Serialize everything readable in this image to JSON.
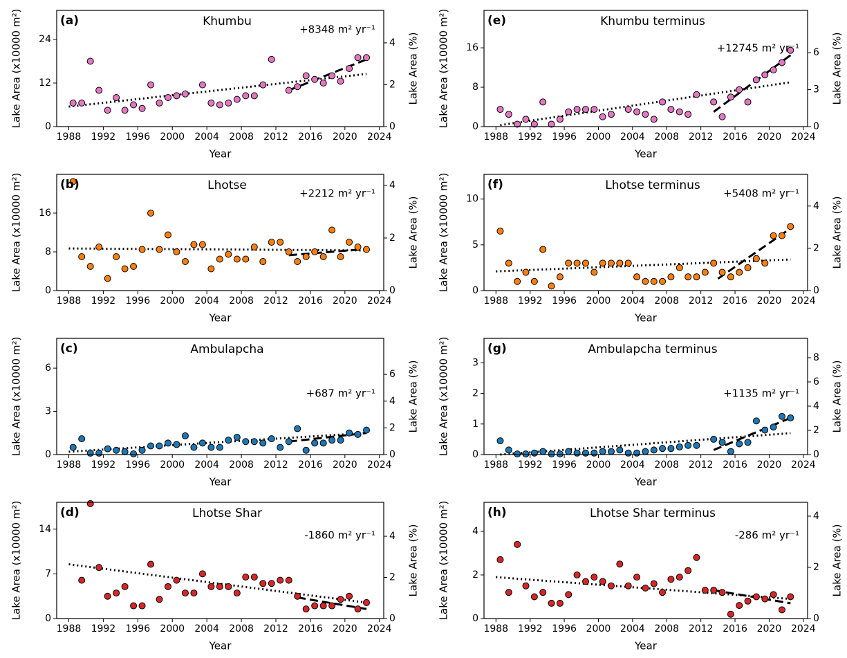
{
  "chart_data": [
    {
      "type": "scatter",
      "label": "(a)",
      "title": "Khumbu",
      "annotation": "+8348 m² yr⁻¹",
      "xlabel": "Year",
      "ylabel": "Lake Area (x10000 m²)",
      "y2label": "Lake Area (%)",
      "color": "#e377c2",
      "x": [
        1988.5,
        1989.5,
        1990.5,
        1991.5,
        1992.5,
        1993.5,
        1994.5,
        1995.5,
        1996.5,
        1997.5,
        1998.5,
        1999.5,
        2000.5,
        2001.5,
        2003.5,
        2004.5,
        2005.5,
        2006.5,
        2007.5,
        2008.5,
        2009.5,
        2010.5,
        2011.5,
        2013.5,
        2014.5,
        2015.5,
        2016.5,
        2017.5,
        2018.5,
        2019.5,
        2020.5,
        2021.5,
        2022.5
      ],
      "values": [
        6.5,
        6.5,
        18,
        10,
        4.5,
        8,
        4.5,
        6,
        5,
        11.5,
        6.5,
        8,
        8.5,
        9,
        11.5,
        6.5,
        6,
        6.5,
        7.5,
        8.5,
        8.5,
        11.5,
        18.5,
        10,
        11,
        14,
        13,
        12,
        14,
        12.5,
        16,
        19,
        19
      ],
      "trend": {
        "style": "dotted",
        "x": [
          1988,
          2022.5
        ],
        "values": [
          5.5,
          14.5
        ]
      },
      "recent_trend": {
        "style": "dashed",
        "x": [
          2013.5,
          2022.5
        ],
        "values": [
          10,
          18.5
        ]
      },
      "xlim": [
        1986.6,
        2024.5
      ],
      "xticks": [
        1988,
        1992,
        1996,
        2000,
        2004,
        2008,
        2012,
        2016,
        2020,
        2024
      ],
      "ylim": [
        0,
        32
      ],
      "yticks": [
        0,
        12,
        24
      ],
      "y2lim": [
        0,
        5.55
      ],
      "y2ticks": [
        0,
        2,
        4
      ]
    },
    {
      "type": "scatter",
      "label": "(b)",
      "title": "Lhotse",
      "annotation": "+2212 m² yr⁻¹",
      "xlabel": "Year",
      "ylabel": "Lake Area (x10000 m²)",
      "y2label": "Lake Area (%)",
      "color": "#ff7f0e",
      "x": [
        1988.5,
        1989.5,
        1990.5,
        1991.5,
        1992.5,
        1993.5,
        1994.5,
        1995.5,
        1996.5,
        1997.5,
        1998.5,
        1999.5,
        2000.5,
        2001.5,
        2002.5,
        2003.5,
        2004.5,
        2005.5,
        2006.5,
        2007.5,
        2008.5,
        2009.5,
        2010.5,
        2011.5,
        2012.5,
        2013.5,
        2014.5,
        2015.5,
        2016.5,
        2017.5,
        2018.5,
        2019.5,
        2020.5,
        2021.5,
        2022.5
      ],
      "values": [
        22.5,
        7,
        5,
        9,
        2.5,
        7,
        4.5,
        5,
        8.5,
        16,
        8.5,
        11.5,
        8,
        6,
        9.5,
        9.5,
        4.5,
        6.5,
        7.5,
        6.5,
        6.5,
        9,
        6,
        10,
        10,
        8,
        6,
        7,
        8,
        7,
        12.5,
        7,
        10,
        9,
        8.5
      ],
      "trend": {
        "style": "dotted",
        "x": [
          1988,
          2022.5
        ],
        "values": [
          8.7,
          8.3
        ]
      },
      "recent_trend": {
        "style": "dashed",
        "x": [
          2013.5,
          2022.5
        ],
        "values": [
          7.3,
          8.6
        ]
      },
      "xlim": [
        1986.6,
        2024.5
      ],
      "xticks": [
        1988,
        1992,
        1996,
        2000,
        2004,
        2008,
        2012,
        2016,
        2020,
        2024
      ],
      "ylim": [
        0,
        24
      ],
      "yticks": [
        0,
        8,
        16
      ],
      "y2lim": [
        0,
        4.42
      ],
      "y2ticks": [
        0,
        2,
        4
      ]
    },
    {
      "type": "scatter",
      "label": "(c)",
      "title": "Ambulapcha",
      "annotation": "+687 m² yr⁻¹",
      "xlabel": "Year",
      "ylabel": "Lake Area (x10000 m²)",
      "y2label": "Lake Area (%)",
      "color": "#1f77b4",
      "x": [
        1988.5,
        1989.5,
        1990.5,
        1991.5,
        1992.5,
        1993.5,
        1994.5,
        1995.5,
        1996.5,
        1997.5,
        1998.5,
        1999.5,
        2000.5,
        2001.5,
        2002.5,
        2003.5,
        2004.5,
        2005.5,
        2006.5,
        2007.5,
        2008.5,
        2009.5,
        2010.5,
        2011.5,
        2012.5,
        2013.5,
        2014.5,
        2015.5,
        2016.5,
        2017.5,
        2018.5,
        2019.5,
        2020.5,
        2021.5,
        2022.5
      ],
      "values": [
        0.5,
        1.1,
        0.1,
        0.1,
        0.4,
        0.3,
        0.2,
        0.05,
        0.3,
        0.6,
        0.6,
        0.8,
        0.7,
        1.3,
        0.5,
        0.8,
        0.5,
        0.5,
        1.0,
        1.2,
        0.9,
        0.9,
        0.8,
        1.1,
        0.5,
        0.9,
        1.8,
        0.3,
        0.8,
        0.8,
        1.0,
        1.0,
        1.5,
        1.4,
        1.7
      ],
      "trend": {
        "style": "dotted",
        "x": [
          1988,
          2022.5
        ],
        "values": [
          0.2,
          1.5
        ]
      },
      "recent_trend": {
        "style": "dashed",
        "x": [
          2013.5,
          2022.5
        ],
        "values": [
          0.9,
          1.5
        ]
      },
      "xlim": [
        1986.6,
        2024.5
      ],
      "xticks": [
        1988,
        1992,
        1996,
        2000,
        2004,
        2008,
        2012,
        2016,
        2020,
        2024
      ],
      "ylim": [
        0,
        8.07
      ],
      "yticks": [
        0,
        3,
        6
      ],
      "y2lim": [
        0,
        8.7
      ],
      "y2ticks": [
        0,
        2,
        4,
        6
      ]
    },
    {
      "type": "scatter",
      "label": "(d)",
      "title": "Lhotse Shar",
      "annotation": "-1860 m² yr⁻¹",
      "xlabel": "Year",
      "ylabel": "Lake Area (x10000 m²)",
      "y2label": "Lake Area (%)",
      "color": "#d62728",
      "x": [
        1989.5,
        1990.5,
        1991.5,
        1992.5,
        1993.5,
        1994.5,
        1995.5,
        1996.5,
        1997.5,
        1998.5,
        1999.5,
        2000.5,
        2001.5,
        2002.5,
        2003.5,
        2004.5,
        2005.5,
        2006.5,
        2007.5,
        2008.5,
        2009.5,
        2010.5,
        2011.5,
        2012.5,
        2013.5,
        2014.5,
        2015.5,
        2016.5,
        2017.5,
        2018.5,
        2019.5,
        2020.5,
        2021.5,
        2022.5
      ],
      "values": [
        6,
        18,
        8,
        3.5,
        4,
        5,
        2,
        2,
        8.5,
        3,
        5,
        6,
        4,
        4,
        7,
        5,
        5,
        5,
        4,
        6.5,
        6.5,
        5.5,
        5.5,
        6,
        6,
        3.5,
        1.5,
        2,
        2,
        2,
        3,
        3.5,
        1.5,
        2.5
      ],
      "trend": {
        "style": "dotted",
        "x": [
          1988,
          2022.5
        ],
        "values": [
          8.5,
          2.5
        ]
      },
      "recent_trend": {
        "style": "dashed",
        "x": [
          2014.5,
          2022.5
        ],
        "values": [
          3.3,
          1.5
        ]
      },
      "xlim": [
        1986.6,
        2024.5
      ],
      "xticks": [
        1988,
        1992,
        1996,
        2000,
        2004,
        2008,
        2012,
        2016,
        2020,
        2024
      ],
      "ylim": [
        0,
        18.2
      ],
      "yticks": [
        0,
        7,
        14
      ],
      "y2lim": [
        0,
        5.65
      ],
      "y2ticks": [
        0,
        2,
        4
      ]
    },
    {
      "type": "scatter",
      "label": "(e)",
      "title": "Khumbu terminus",
      "annotation": "+12745 m² yr⁻¹",
      "xlabel": "Year",
      "ylabel": "Lake Area (x10000 m²)",
      "y2label": "Lake Area (%)",
      "color": "#e377c2",
      "x": [
        1988.5,
        1989.5,
        1990.5,
        1991.5,
        1992.5,
        1993.5,
        1994.5,
        1995.5,
        1996.5,
        1997.5,
        1998.5,
        1999.5,
        2000.5,
        2001.5,
        2003.5,
        2004.5,
        2005.5,
        2006.5,
        2007.5,
        2008.5,
        2009.5,
        2010.5,
        2011.5,
        2013.5,
        2014.5,
        2015.5,
        2016.5,
        2017.5,
        2018.5,
        2019.5,
        2020.5,
        2021.5,
        2022.5
      ],
      "values": [
        3.5,
        2.5,
        0.5,
        1.5,
        0.5,
        5,
        0.5,
        1.5,
        3,
        3.5,
        3.5,
        3.5,
        2,
        2.5,
        3.5,
        3,
        2.5,
        1.5,
        5,
        3.5,
        3,
        2.5,
        6.5,
        5,
        2,
        6,
        7.5,
        5,
        9.5,
        10.5,
        11.5,
        13,
        15.5
      ],
      "trend": {
        "style": "dotted",
        "x": [
          1988.5,
          2022.5
        ],
        "values": [
          0.3,
          9
        ]
      },
      "recent_trend": {
        "style": "dashed",
        "x": [
          2013.5,
          2022.5
        ],
        "values": [
          3,
          14.5
        ]
      },
      "xlim": [
        1986.6,
        2024.5
      ],
      "xticks": [
        1988,
        1992,
        1996,
        2000,
        2004,
        2008,
        2012,
        2016,
        2020,
        2024
      ],
      "ylim": [
        0,
        23.6
      ],
      "yticks": [
        0,
        8,
        16
      ],
      "y2lim": [
        0,
        9.43
      ],
      "y2ticks": [
        0,
        3,
        6
      ]
    },
    {
      "type": "scatter",
      "label": "(f)",
      "title": "Lhotse terminus",
      "annotation": "+5408 m² yr⁻¹",
      "xlabel": "Year",
      "ylabel": "Lake Area (x10000 m²)",
      "y2label": "Lake Area (%)",
      "color": "#ff7f0e",
      "x": [
        1988.5,
        1989.5,
        1990.5,
        1991.5,
        1992.5,
        1993.5,
        1994.5,
        1995.5,
        1996.5,
        1997.5,
        1998.5,
        1999.5,
        2000.5,
        2001.5,
        2002.5,
        2003.5,
        2004.5,
        2005.5,
        2006.5,
        2007.5,
        2008.5,
        2009.5,
        2010.5,
        2011.5,
        2012.5,
        2013.5,
        2014.5,
        2015.5,
        2016.5,
        2017.5,
        2018.5,
        2019.5,
        2020.5,
        2021.5,
        2022.5
      ],
      "values": [
        6.5,
        3,
        1,
        2,
        1,
        4.5,
        0.5,
        1.5,
        3,
        3,
        3,
        2,
        3,
        3,
        3,
        3,
        1.5,
        1,
        1,
        1,
        1.5,
        2.5,
        1.5,
        1.5,
        2,
        3,
        2,
        1.5,
        2,
        2.5,
        3.5,
        3,
        6,
        6,
        7
      ],
      "trend": {
        "style": "dotted",
        "x": [
          1988,
          2022.5
        ],
        "values": [
          2.1,
          3.4
        ]
      },
      "recent_trend": {
        "style": "dashed",
        "x": [
          2014,
          2022.5
        ],
        "values": [
          1.3,
          6.8
        ]
      },
      "xlim": [
        1986.6,
        2024.5
      ],
      "xticks": [
        1988,
        1992,
        1996,
        2000,
        2004,
        2008,
        2012,
        2016,
        2020,
        2024
      ],
      "ylim": [
        0,
        12.7
      ],
      "yticks": [
        0,
        5,
        10
      ],
      "y2lim": [
        0,
        5.5
      ],
      "y2ticks": [
        0,
        2,
        4
      ]
    },
    {
      "type": "scatter",
      "label": "(g)",
      "title": "Ambulapcha terminus",
      "annotation": "+1135 m² yr⁻¹",
      "xlabel": "Year",
      "ylabel": "Lake Area (x10000 m²)",
      "y2label": "Lake Area (%)",
      "color": "#1f77b4",
      "x": [
        1988.5,
        1989.5,
        1990.5,
        1991.5,
        1992.5,
        1993.5,
        1994.5,
        1995.5,
        1996.5,
        1997.5,
        1998.5,
        1999.5,
        2000.5,
        2001.5,
        2002.5,
        2003.5,
        2004.5,
        2005.5,
        2006.5,
        2007.5,
        2008.5,
        2009.5,
        2010.5,
        2011.5,
        2013.5,
        2014.5,
        2015.5,
        2016.5,
        2017.5,
        2018.5,
        2019.5,
        2020.5,
        2021.5,
        2022.5
      ],
      "values": [
        0.45,
        0.15,
        0.02,
        0.02,
        0.05,
        0.1,
        0.02,
        0.02,
        0.1,
        0.05,
        0.05,
        0.05,
        0.1,
        0.1,
        0.15,
        0.05,
        0.05,
        0.1,
        0.15,
        0.2,
        0.2,
        0.25,
        0.3,
        0.3,
        0.5,
        0.4,
        0.1,
        0.35,
        0.4,
        1.1,
        0.8,
        0.9,
        1.25,
        1.2
      ],
      "trend": {
        "style": "dotted",
        "x": [
          1988.5,
          2022.5
        ],
        "values": [
          0,
          0.7
        ]
      },
      "recent_trend": {
        "style": "dashed",
        "x": [
          2013.5,
          2022.5
        ],
        "values": [
          0.15,
          1.2
        ]
      },
      "xlim": [
        1986.6,
        2024.5
      ],
      "xticks": [
        1988,
        1992,
        1996,
        2000,
        2004,
        2008,
        2012,
        2016,
        2020,
        2024
      ],
      "ylim": [
        0,
        3.8
      ],
      "yticks": [
        0,
        1,
        2,
        3
      ],
      "y2lim": [
        0,
        9.6
      ],
      "y2ticks": [
        0,
        2,
        4,
        6,
        8
      ]
    },
    {
      "type": "scatter",
      "label": "(h)",
      "title": "Lhotse Shar terminus",
      "annotation": "-286 m² yr⁻¹",
      "xlabel": "Year",
      "ylabel": "Lake Area (x10000 m²)",
      "y2label": "Lake Area (%)",
      "color": "#d62728",
      "x": [
        1988.5,
        1989.5,
        1990.5,
        1991.5,
        1992.5,
        1993.5,
        1994.5,
        1995.5,
        1996.5,
        1997.5,
        1998.5,
        1999.5,
        2000.5,
        2001.5,
        2002.5,
        2003.5,
        2004.5,
        2005.5,
        2006.5,
        2007.5,
        2008.5,
        2009.5,
        2010.5,
        2011.5,
        2012.5,
        2013.5,
        2014.5,
        2015.5,
        2016.5,
        2017.5,
        2018.5,
        2019.5,
        2020.5,
        2021.5,
        2022.5
      ],
      "values": [
        2.7,
        1.2,
        3.4,
        1.5,
        1.0,
        1.2,
        0.7,
        0.7,
        1.1,
        2.0,
        1.7,
        1.9,
        1.7,
        1.5,
        2.5,
        1.5,
        1.9,
        1.4,
        1.6,
        1.2,
        1.8,
        1.9,
        2.2,
        2.8,
        1.3,
        1.3,
        1.2,
        0.2,
        0.6,
        0.8,
        1.0,
        0.9,
        1.1,
        0.4,
        1.0
      ],
      "trend": {
        "style": "dotted",
        "x": [
          1988,
          2022.5
        ],
        "values": [
          1.9,
          0.9
        ]
      },
      "recent_trend": {
        "style": "dashed",
        "x": [
          2013.5,
          2022.5
        ],
        "values": [
          1.3,
          0.7
        ]
      },
      "xlim": [
        1986.6,
        2024.5
      ],
      "xticks": [
        1988,
        1992,
        1996,
        2000,
        2004,
        2008,
        2012,
        2016,
        2020,
        2024
      ],
      "ylim": [
        0,
        5.33
      ],
      "yticks": [
        0,
        2,
        4
      ],
      "y2lim": [
        0,
        4.54
      ],
      "y2ticks": [
        0,
        2,
        4
      ]
    }
  ]
}
